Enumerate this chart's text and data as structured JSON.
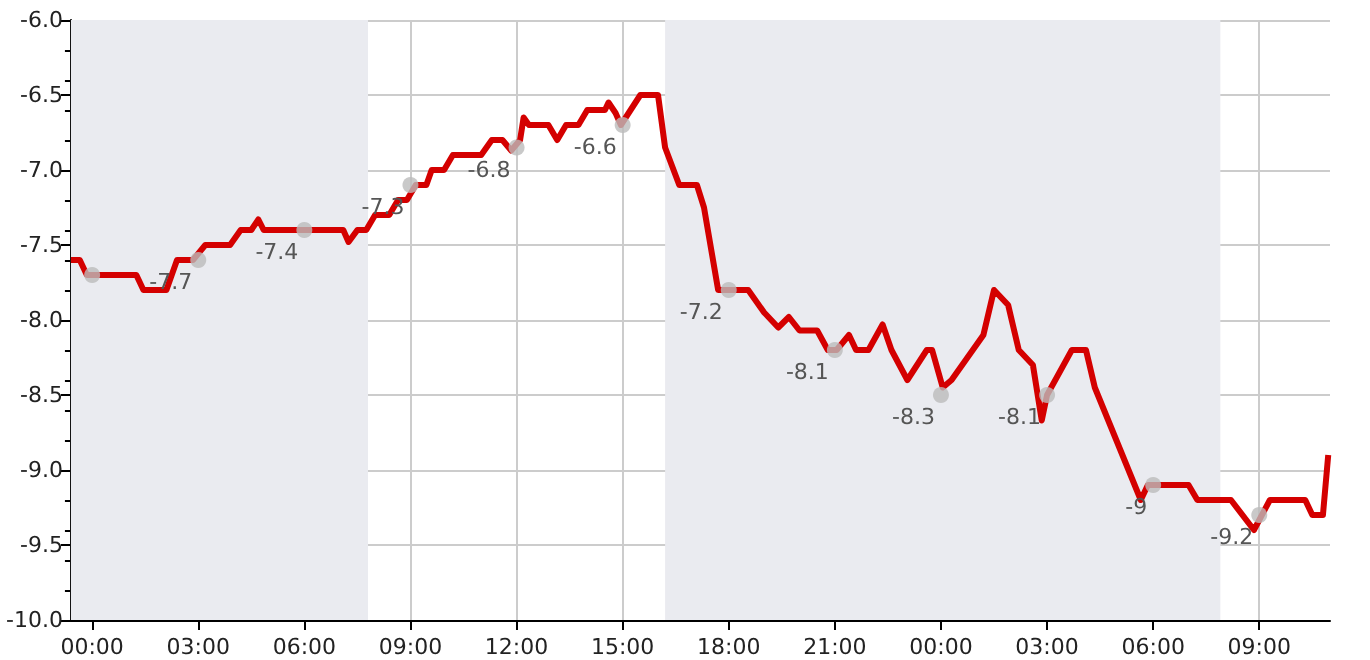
{
  "chart_data": {
    "type": "line",
    "xlim": [
      "1999-12-31T23:24",
      "2000-01-02T11:00"
    ],
    "xticks": [
      {
        "value": "2000-01-01T00:00",
        "label": "00:00"
      },
      {
        "value": "2000-01-01T03:00",
        "label": "03:00"
      },
      {
        "value": "2000-01-01T06:00",
        "label": "06:00"
      },
      {
        "value": "2000-01-01T09:00",
        "label": "09:00"
      },
      {
        "value": "2000-01-01T12:00",
        "label": "12:00"
      },
      {
        "value": "2000-01-01T15:00",
        "label": "15:00"
      },
      {
        "value": "2000-01-01T18:00",
        "label": "18:00"
      },
      {
        "value": "2000-01-01T21:00",
        "label": "21:00"
      },
      {
        "value": "2000-01-02T00:00",
        "label": "00:00"
      },
      {
        "value": "2000-01-02T03:00",
        "label": "03:00"
      },
      {
        "value": "2000-01-02T06:00",
        "label": "06:00"
      },
      {
        "value": "2000-01-02T09:00",
        "label": "09:00"
      }
    ],
    "ylim": [
      -10,
      -6
    ],
    "yticks": [
      {
        "value": -10,
        "label": "-10.0"
      },
      {
        "value": -9.5,
        "label": "-9.5"
      },
      {
        "value": -9,
        "label": "-9.0"
      },
      {
        "value": -8.5,
        "label": "-8.5"
      },
      {
        "value": -8,
        "label": "-8.0"
      },
      {
        "value": -7.5,
        "label": "-7.5"
      },
      {
        "value": -7,
        "label": "-7.0"
      },
      {
        "value": -6.5,
        "label": "-6.5"
      },
      {
        "value": -6,
        "label": "-6.0"
      }
    ],
    "grid": true,
    "bands": [
      {
        "axis": "x",
        "from": "1999-12-31T23:24",
        "to": "2000-01-01T07:48",
        "color": "#eaebf0"
      },
      {
        "axis": "x",
        "from": "2000-01-01T16:12",
        "to": "2000-01-02T07:54",
        "color": "#eaebf0"
      }
    ],
    "annotations": [
      "-7.7",
      "-7.4",
      "-7.3",
      "-6.8",
      "-6.6",
      "-7.2",
      "-8.1",
      "-8.3",
      "-8.1",
      "-9",
      "-9.2"
    ],
    "series": [
      {
        "type": "line",
        "color": "#d40000",
        "marker": "none",
        "line_style": "solid",
        "x": [
          "1999-12-31T23:24",
          "1999-12-31T23:39",
          "1999-12-31T23:51",
          "2000-01-01T01:15",
          "2000-01-01T01:27",
          "2000-01-01T02:06",
          "2000-01-01T02:24",
          "2000-01-01T02:51",
          "2000-01-01T03:12",
          "2000-01-01T03:54",
          "2000-01-01T04:12",
          "2000-01-01T04:30",
          "2000-01-01T04:42",
          "2000-01-01T04:51",
          "2000-01-01T07:06",
          "2000-01-01T07:15",
          "2000-01-01T07:30",
          "2000-01-01T07:45",
          "2000-01-01T08:00",
          "2000-01-01T08:24",
          "2000-01-01T08:39",
          "2000-01-01T08:54",
          "2000-01-01T09:09",
          "2000-01-01T09:27",
          "2000-01-01T09:36",
          "2000-01-01T09:57",
          "2000-01-01T10:12",
          "2000-01-01T11:00",
          "2000-01-01T11:18",
          "2000-01-01T11:36",
          "2000-01-01T11:51",
          "2000-01-01T12:06",
          "2000-01-01T12:12",
          "2000-01-01T12:21",
          "2000-01-01T12:54",
          "2000-01-01T13:09",
          "2000-01-01T13:24",
          "2000-01-01T13:45",
          "2000-01-01T14:00",
          "2000-01-01T14:30",
          "2000-01-01T14:36",
          "2000-01-01T14:48",
          "2000-01-01T14:57",
          "2000-01-01T15:30",
          "2000-01-01T16:00",
          "2000-01-01T16:12",
          "2000-01-01T16:36",
          "2000-01-01T17:06",
          "2000-01-01T17:18",
          "2000-01-01T17:42",
          "2000-01-01T18:33",
          "2000-01-01T19:00",
          "2000-01-01T19:24",
          "2000-01-01T19:42",
          "2000-01-01T20:00",
          "2000-01-01T20:30",
          "2000-01-01T20:48",
          "2000-01-01T21:03",
          "2000-01-01T21:24",
          "2000-01-01T21:36",
          "2000-01-01T21:57",
          "2000-01-01T22:21",
          "2000-01-01T22:36",
          "2000-01-01T23:03",
          "2000-01-01T23:36",
          "2000-01-01T23:45",
          "2000-01-02T00:03",
          "2000-01-02T00:18",
          "2000-01-02T00:54",
          "2000-01-02T01:12",
          "2000-01-02T01:30",
          "2000-01-02T01:54",
          "2000-01-02T02:12",
          "2000-01-02T02:36",
          "2000-01-02T02:51",
          "2000-01-02T03:00",
          "2000-01-02T03:42",
          "2000-01-02T04:06",
          "2000-01-02T04:21",
          "2000-01-02T05:39",
          "2000-01-02T05:51",
          "2000-01-02T06:12",
          "2000-01-02T07:00",
          "2000-01-02T07:15",
          "2000-01-02T08:12",
          "2000-01-02T08:51",
          "2000-01-02T09:18",
          "2000-01-02T10:18",
          "2000-01-02T10:30",
          "2000-01-02T10:48",
          "2000-01-02T10:57"
        ],
        "values": [
          -7.6,
          -7.6,
          -7.7,
          -7.7,
          -7.8,
          -7.8,
          -7.6,
          -7.6,
          -7.5,
          -7.5,
          -7.4,
          -7.4,
          -7.33,
          -7.4,
          -7.4,
          -7.48,
          -7.4,
          -7.4,
          -7.3,
          -7.3,
          -7.2,
          -7.2,
          -7.1,
          -7.1,
          -7.0,
          -7.0,
          -6.9,
          -6.9,
          -6.8,
          -6.8,
          -6.87,
          -6.8,
          -6.65,
          -6.7,
          -6.7,
          -6.8,
          -6.7,
          -6.7,
          -6.6,
          -6.6,
          -6.55,
          -6.62,
          -6.7,
          -6.5,
          -6.5,
          -6.85,
          -7.1,
          -7.1,
          -7.25,
          -7.8,
          -7.8,
          -7.95,
          -8.05,
          -7.98,
          -8.07,
          -8.07,
          -8.2,
          -8.2,
          -8.1,
          -8.2,
          -8.2,
          -8.03,
          -8.2,
          -8.4,
          -8.2,
          -8.2,
          -8.45,
          -8.4,
          -8.2,
          -8.1,
          -7.8,
          -7.9,
          -8.2,
          -8.3,
          -8.67,
          -8.5,
          -8.2,
          -8.2,
          -8.45,
          -9.2,
          -9.1,
          -9.1,
          -9.1,
          -9.2,
          -9.2,
          -9.4,
          -9.2,
          -9.2,
          -9.3,
          -9.3,
          -8.9
        ]
      },
      {
        "type": "scatter",
        "color": "#bbbbbb",
        "marker": "circle",
        "x": [
          "2000-01-01T00:00",
          "2000-01-01T03:00",
          "2000-01-01T06:00",
          "2000-01-01T09:00",
          "2000-01-01T12:00",
          "2000-01-01T15:00",
          "2000-01-01T18:00",
          "2000-01-01T21:00",
          "2000-01-02T00:00",
          "2000-01-02T03:00",
          "2000-01-02T06:00",
          "2000-01-02T09:00"
        ],
        "values": [
          -7.7,
          -7.6,
          -7.4,
          -7.1,
          -6.85,
          -6.7,
          -7.8,
          -8.2,
          -8.5,
          -8.5,
          -9.1,
          -9.3
        ]
      }
    ]
  }
}
